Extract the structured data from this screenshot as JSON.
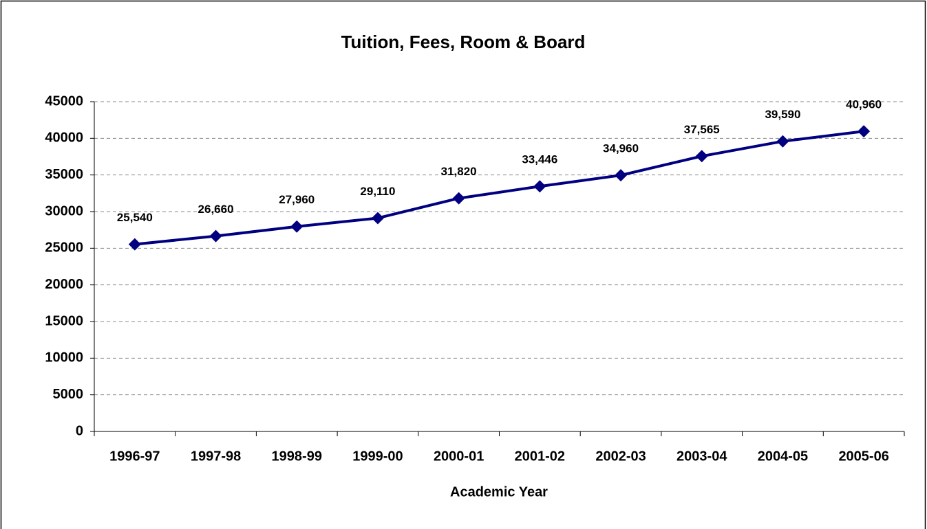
{
  "chart_data": {
    "type": "line",
    "title": "Tuition, Fees, Room & Board",
    "x_label": "Academic Year",
    "categories": [
      "1996-97",
      "1997-98",
      "1998-99",
      "1999-00",
      "2000-01",
      "2001-02",
      "2002-03",
      "2003-04",
      "2004-05",
      "2005-06"
    ],
    "values": [
      25540,
      26660,
      27960,
      29110,
      31820,
      33446,
      34960,
      37565,
      39590,
      40960
    ],
    "value_labels": [
      "25,540",
      "26,660",
      "27,960",
      "29,110",
      "31,820",
      "33,446",
      "34,960",
      "37,565",
      "39,590",
      "40,960"
    ],
    "color": "#000080",
    "ylim": [
      0,
      45000
    ],
    "yticks": [
      0,
      5000,
      10000,
      15000,
      20000,
      25000,
      30000,
      35000,
      40000,
      45000
    ],
    "grid": true
  }
}
